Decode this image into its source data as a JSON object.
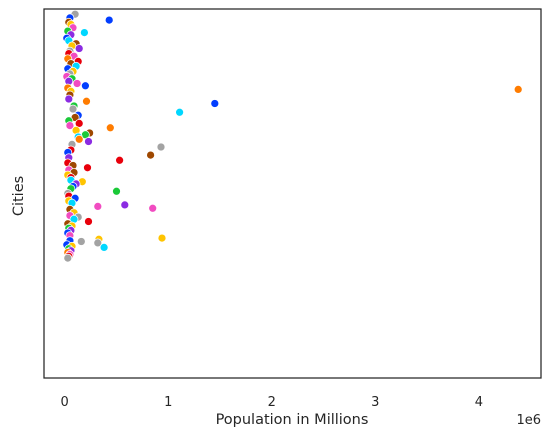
{
  "chart_data": {
    "type": "scatter",
    "title": "",
    "xlabel": "Population in Millions",
    "ylabel": "Cities",
    "x_offset_label": "1e6",
    "x_ticks": [
      0,
      1,
      2,
      3,
      4
    ],
    "xlim": [
      -0.2,
      4.6
    ],
    "ylim": [
      0,
      100
    ],
    "grid": false,
    "legend": "none",
    "colors": [
      "#023eff",
      "#ff7c00",
      "#1ac938",
      "#e8000b",
      "#8b2be2",
      "#9f4800",
      "#f14cc1",
      "#a3a3a3",
      "#ffc400",
      "#00d7ff"
    ],
    "points": [
      {
        "x": 0.1,
        "y": 98.6,
        "c": 7
      },
      {
        "x": 0.05,
        "y": 97.6,
        "c": 0
      },
      {
        "x": 0.43,
        "y": 97.0,
        "c": 0
      },
      {
        "x": 0.04,
        "y": 96.4,
        "c": 5
      },
      {
        "x": 0.06,
        "y": 95.8,
        "c": 8
      },
      {
        "x": 0.08,
        "y": 94.9,
        "c": 6
      },
      {
        "x": 0.03,
        "y": 94.0,
        "c": 2
      },
      {
        "x": 0.19,
        "y": 93.6,
        "c": 9
      },
      {
        "x": 0.06,
        "y": 93.0,
        "c": 4
      },
      {
        "x": 0.02,
        "y": 92.1,
        "c": 0
      },
      {
        "x": 0.04,
        "y": 91.4,
        "c": 9
      },
      {
        "x": 0.11,
        "y": 90.6,
        "c": 5
      },
      {
        "x": 0.07,
        "y": 90.0,
        "c": 8
      },
      {
        "x": 0.14,
        "y": 89.3,
        "c": 4
      },
      {
        "x": 0.05,
        "y": 88.6,
        "c": 7
      },
      {
        "x": 0.04,
        "y": 87.9,
        "c": 3
      },
      {
        "x": 0.09,
        "y": 87.2,
        "c": 6
      },
      {
        "x": 0.03,
        "y": 86.5,
        "c": 1
      },
      {
        "x": 0.13,
        "y": 85.8,
        "c": 3
      },
      {
        "x": 0.06,
        "y": 85.2,
        "c": 5
      },
      {
        "x": 0.11,
        "y": 84.5,
        "c": 9
      },
      {
        "x": 0.03,
        "y": 83.8,
        "c": 0
      },
      {
        "x": 0.08,
        "y": 83.1,
        "c": 8
      },
      {
        "x": 0.05,
        "y": 82.4,
        "c": 7
      },
      {
        "x": 0.02,
        "y": 81.7,
        "c": 6
      },
      {
        "x": 0.07,
        "y": 81.1,
        "c": 2
      },
      {
        "x": 0.04,
        "y": 80.4,
        "c": 4
      },
      {
        "x": 0.12,
        "y": 79.8,
        "c": 6
      },
      {
        "x": 0.2,
        "y": 79.2,
        "c": 0
      },
      {
        "x": 0.03,
        "y": 78.6,
        "c": 1
      },
      {
        "x": 4.38,
        "y": 78.2,
        "c": 1
      },
      {
        "x": 0.06,
        "y": 77.7,
        "c": 8
      },
      {
        "x": 0.05,
        "y": 76.7,
        "c": 5
      },
      {
        "x": 0.04,
        "y": 75.6,
        "c": 4
      },
      {
        "x": 0.21,
        "y": 75.0,
        "c": 1
      },
      {
        "x": 1.45,
        "y": 74.4,
        "c": 0
      },
      {
        "x": 0.09,
        "y": 73.7,
        "c": 2
      },
      {
        "x": 0.08,
        "y": 72.9,
        "c": 7
      },
      {
        "x": 1.11,
        "y": 72.0,
        "c": 9
      },
      {
        "x": 0.13,
        "y": 71.2,
        "c": 0
      },
      {
        "x": 0.1,
        "y": 70.6,
        "c": 5
      },
      {
        "x": 0.04,
        "y": 69.7,
        "c": 2
      },
      {
        "x": 0.14,
        "y": 69.0,
        "c": 3
      },
      {
        "x": 0.05,
        "y": 68.4,
        "c": 6
      },
      {
        "x": 0.44,
        "y": 67.8,
        "c": 1
      },
      {
        "x": 0.11,
        "y": 67.1,
        "c": 8
      },
      {
        "x": 0.24,
        "y": 66.4,
        "c": 5
      },
      {
        "x": 0.2,
        "y": 65.9,
        "c": 2
      },
      {
        "x": 0.13,
        "y": 65.3,
        "c": 9
      },
      {
        "x": 0.14,
        "y": 64.7,
        "c": 1
      },
      {
        "x": 0.23,
        "y": 64.1,
        "c": 4
      },
      {
        "x": 0.07,
        "y": 63.3,
        "c": 7
      },
      {
        "x": 0.93,
        "y": 62.6,
        "c": 7
      },
      {
        "x": 0.06,
        "y": 61.8,
        "c": 3
      },
      {
        "x": 0.03,
        "y": 61.1,
        "c": 0
      },
      {
        "x": 0.83,
        "y": 60.4,
        "c": 5
      },
      {
        "x": 0.04,
        "y": 59.7,
        "c": 4
      },
      {
        "x": 0.53,
        "y": 59.0,
        "c": 3
      },
      {
        "x": 0.03,
        "y": 58.3,
        "c": 3
      },
      {
        "x": 0.08,
        "y": 57.6,
        "c": 5
      },
      {
        "x": 0.22,
        "y": 57.0,
        "c": 3
      },
      {
        "x": 0.04,
        "y": 56.4,
        "c": 6
      },
      {
        "x": 0.09,
        "y": 55.7,
        "c": 5
      },
      {
        "x": 0.03,
        "y": 55.0,
        "c": 8
      },
      {
        "x": 0.06,
        "y": 54.3,
        "c": 3
      },
      {
        "x": 0.06,
        "y": 53.6,
        "c": 9
      },
      {
        "x": 0.17,
        "y": 53.2,
        "c": 8
      },
      {
        "x": 0.11,
        "y": 52.6,
        "c": 4
      },
      {
        "x": 0.08,
        "y": 51.9,
        "c": 0
      },
      {
        "x": 0.06,
        "y": 51.3,
        "c": 2
      },
      {
        "x": 0.5,
        "y": 50.6,
        "c": 2
      },
      {
        "x": 0.03,
        "y": 50.0,
        "c": 7
      },
      {
        "x": 0.04,
        "y": 49.3,
        "c": 3
      },
      {
        "x": 0.1,
        "y": 48.7,
        "c": 0
      },
      {
        "x": 0.04,
        "y": 48.0,
        "c": 8
      },
      {
        "x": 0.07,
        "y": 47.4,
        "c": 9
      },
      {
        "x": 0.58,
        "y": 46.9,
        "c": 4
      },
      {
        "x": 0.32,
        "y": 46.5,
        "c": 6
      },
      {
        "x": 0.85,
        "y": 46.0,
        "c": 6
      },
      {
        "x": 0.05,
        "y": 45.7,
        "c": 5
      },
      {
        "x": 0.09,
        "y": 44.8,
        "c": 8
      },
      {
        "x": 0.05,
        "y": 44.0,
        "c": 6
      },
      {
        "x": 0.13,
        "y": 43.6,
        "c": 7
      },
      {
        "x": 0.09,
        "y": 43.0,
        "c": 9
      },
      {
        "x": 0.23,
        "y": 42.4,
        "c": 3
      },
      {
        "x": 0.03,
        "y": 41.8,
        "c": 5
      },
      {
        "x": 0.07,
        "y": 41.2,
        "c": 8
      },
      {
        "x": 0.04,
        "y": 40.6,
        "c": 2
      },
      {
        "x": 0.06,
        "y": 40.0,
        "c": 4
      },
      {
        "x": 0.03,
        "y": 39.3,
        "c": 0
      },
      {
        "x": 0.05,
        "y": 38.6,
        "c": 6
      },
      {
        "x": 0.94,
        "y": 37.9,
        "c": 8
      },
      {
        "x": 0.33,
        "y": 37.6,
        "c": 8
      },
      {
        "x": 0.05,
        "y": 37.2,
        "c": 0
      },
      {
        "x": 0.16,
        "y": 37.0,
        "c": 7
      },
      {
        "x": 0.32,
        "y": 36.6,
        "c": 7
      },
      {
        "x": 0.02,
        "y": 36.1,
        "c": 0
      },
      {
        "x": 0.07,
        "y": 35.7,
        "c": 8
      },
      {
        "x": 0.38,
        "y": 35.4,
        "c": 9
      },
      {
        "x": 0.04,
        "y": 35.0,
        "c": 2
      },
      {
        "x": 0.06,
        "y": 34.5,
        "c": 4
      },
      {
        "x": 0.03,
        "y": 34.0,
        "c": 1
      },
      {
        "x": 0.05,
        "y": 33.5,
        "c": 6
      },
      {
        "x": 0.04,
        "y": 33.0,
        "c": 3
      },
      {
        "x": 0.03,
        "y": 32.5,
        "c": 7
      }
    ]
  }
}
